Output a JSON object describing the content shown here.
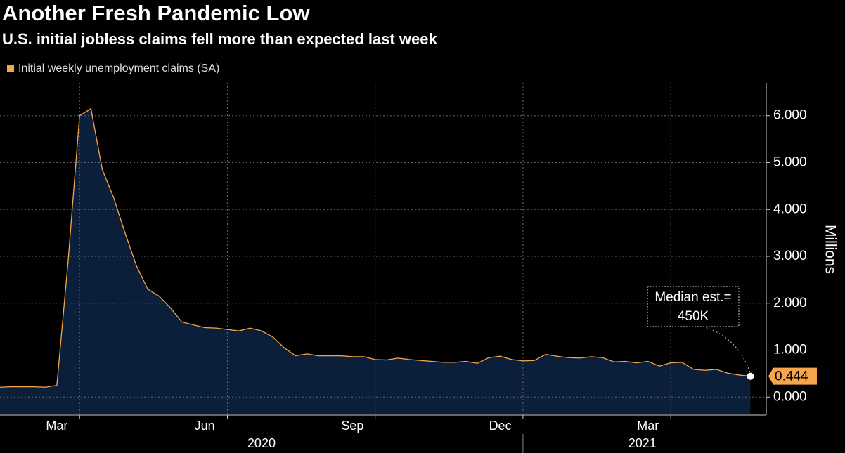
{
  "chart_data": {
    "type": "area",
    "title": "Another Fresh Pandemic Low",
    "subtitle": "U.S. initial jobless claims fell more than expected last week",
    "y_axis_label": "Millions",
    "categories": [
      null,
      null,
      null,
      null,
      null,
      null,
      null,
      null,
      null,
      null,
      null,
      null,
      null,
      null,
      null,
      null,
      null,
      null,
      null,
      null,
      null,
      null,
      null,
      null,
      null,
      null,
      null,
      null,
      null,
      null,
      null,
      null,
      null,
      null,
      null,
      null,
      null,
      null,
      null,
      null,
      null,
      null,
      null,
      null,
      null,
      null,
      null,
      null,
      null,
      null,
      null,
      null,
      null,
      null,
      null,
      null,
      null,
      null,
      null,
      null,
      null,
      null,
      null,
      null,
      null,
      null,
      null
    ],
    "series": [
      {
        "name": "Initial weekly unemployment claims (SA)",
        "color": "#f6a54b",
        "fill": "#0b1f3a",
        "values": [
          0.21,
          0.22,
          0.22,
          0.22,
          0.21,
          0.25,
          2.92,
          6.0,
          6.15,
          4.85,
          4.25,
          3.5,
          2.8,
          2.3,
          2.15,
          1.9,
          1.6,
          1.54,
          1.48,
          1.47,
          1.44,
          1.41,
          1.47,
          1.41,
          1.28,
          1.05,
          0.88,
          0.92,
          0.88,
          0.88,
          0.88,
          0.86,
          0.86,
          0.8,
          0.79,
          0.83,
          0.8,
          0.78,
          0.76,
          0.74,
          0.74,
          0.76,
          0.72,
          0.84,
          0.87,
          0.8,
          0.77,
          0.78,
          0.91,
          0.87,
          0.84,
          0.83,
          0.86,
          0.84,
          0.75,
          0.76,
          0.73,
          0.76,
          0.66,
          0.73,
          0.74,
          0.59,
          0.57,
          0.59,
          0.51,
          0.47,
          0.444
        ]
      }
    ],
    "xlim": [
      0,
      67.4
    ],
    "xticks": [
      {
        "value": 7,
        "label": "Mar"
      },
      {
        "value": 20,
        "label": "Jun"
      },
      {
        "value": 33,
        "label": "Sep"
      },
      {
        "value": 46,
        "label": "Dec"
      },
      {
        "value": 59,
        "label": "Mar"
      }
    ],
    "xgroups": [
      {
        "value": 23,
        "label": "2020"
      },
      {
        "value": 56.5,
        "label": "2021"
      }
    ],
    "ylim": [
      -0.37,
      6.7
    ],
    "yticks": [
      {
        "value": 0,
        "label": "0.000"
      },
      {
        "value": 1,
        "label": "1.000"
      },
      {
        "value": 2,
        "label": "2.000"
      },
      {
        "value": 3,
        "label": "3.000"
      },
      {
        "value": 4,
        "label": "4.000"
      },
      {
        "value": 5,
        "label": "5.000"
      },
      {
        "value": 6,
        "label": "6.000"
      }
    ],
    "annotation": [
      "Median est.=",
      "450K"
    ],
    "grid": true
  }
}
